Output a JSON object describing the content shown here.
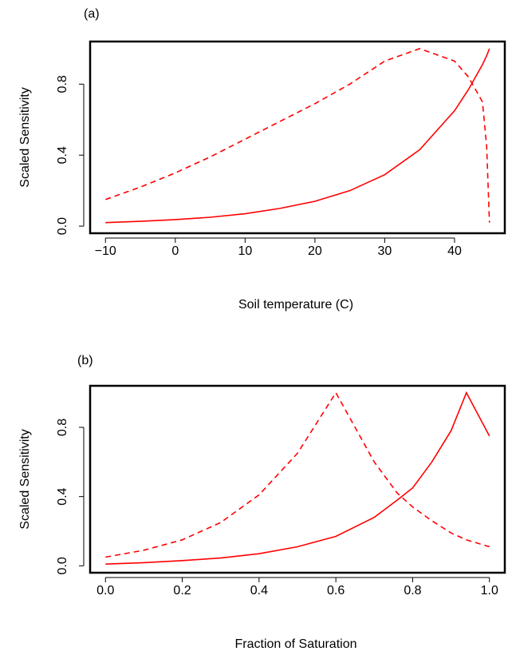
{
  "chart_data": [
    {
      "type": "line",
      "panel_label": "(a)",
      "xlabel": "Soil temperature (C)",
      "ylabel": "Scaled Sensitivity",
      "x": [
        -10,
        -5,
        0,
        5,
        10,
        15,
        20,
        25,
        30,
        35,
        40,
        42,
        44,
        44.6,
        45
      ],
      "series": [
        {
          "color": "#ff0000",
          "linestyle": "solid",
          "values": [
            0.02,
            0.027,
            0.037,
            0.05,
            0.07,
            0.1,
            0.14,
            0.2,
            0.29,
            0.43,
            0.65,
            0.77,
            0.91,
            0.96,
            1.0
          ]
        },
        {
          "color": "#ff0000",
          "linestyle": "dashed",
          "values": [
            0.15,
            0.22,
            0.3,
            0.39,
            0.49,
            0.59,
            0.69,
            0.8,
            0.93,
            1.0,
            0.93,
            0.84,
            0.7,
            0.45,
            0.02
          ]
        }
      ],
      "xlim": [
        -12.2,
        47.2
      ],
      "ylim": [
        -0.04,
        1.04
      ],
      "xticks": [
        {
          "value": -10,
          "label": "−10"
        },
        0,
        10,
        20,
        30,
        40
      ],
      "yticks": [
        {
          "value": 0,
          "label": "0.0"
        },
        0.4,
        0.8
      ]
    },
    {
      "type": "line",
      "panel_label": "(b)",
      "xlabel": "Fraction of Saturation",
      "ylabel": "Scaled Sensitivity",
      "x": [
        0,
        0.1,
        0.2,
        0.3,
        0.4,
        0.5,
        0.6,
        0.7,
        0.76,
        0.8,
        0.85,
        0.9,
        0.94,
        1.0
      ],
      "series": [
        {
          "color": "#ff0000",
          "linestyle": "solid",
          "values": [
            0.01,
            0.018,
            0.03,
            0.045,
            0.07,
            0.11,
            0.17,
            0.28,
            0.38,
            0.45,
            0.6,
            0.78,
            1.0,
            0.75
          ]
        },
        {
          "color": "#ff0000",
          "linestyle": "dashed",
          "values": [
            0.05,
            0.09,
            0.15,
            0.25,
            0.41,
            0.65,
            1.0,
            0.6,
            0.42,
            0.34,
            0.26,
            0.19,
            0.15,
            0.11
          ]
        }
      ],
      "xlim": [
        -0.04,
        1.04
      ],
      "ylim": [
        -0.04,
        1.04
      ],
      "xticks": [
        {
          "value": 0,
          "label": "0.0"
        },
        0.2,
        0.4,
        0.6,
        0.8,
        {
          "value": 1,
          "label": "1.0"
        }
      ],
      "yticks": [
        {
          "value": 0,
          "label": "0.0"
        },
        0.4,
        0.8
      ]
    }
  ]
}
